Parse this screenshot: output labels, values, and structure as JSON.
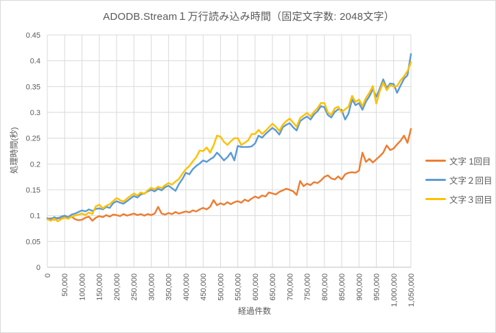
{
  "frame": {
    "background": "#FFFFFF",
    "border_color": "#D9D9D9",
    "grid_color": "#D9D9D9",
    "axis_line_color": "#BFBFBF",
    "text_color": "#595959"
  },
  "chart_data": {
    "type": "line",
    "title": "ADODB.Stream１万行読み込み時間（固定文字数: 2048文字）",
    "xlabel": "経過件数",
    "ylabel": "処理時間(秒)",
    "ylim": [
      0,
      0.45
    ],
    "y_tick_step": 0.05,
    "y_tick_labels": [
      "0",
      "0.05",
      "0.1",
      "0.15",
      "0.2",
      "0.25",
      "0.3",
      "0.35",
      "0.4",
      "0.45"
    ],
    "x_start": 0,
    "x_step": 10000,
    "x_tick_labels": [
      "0",
      "50,000",
      "100,000",
      "150,000",
      "200,000",
      "250,000",
      "300,000",
      "350,000",
      "400,000",
      "450,000",
      "500,000",
      "550,000",
      "600,000",
      "650,000",
      "700,000",
      "750,000",
      "800,000",
      "850,000",
      "900,000",
      "950,000",
      "1,000,000",
      "1,050,000"
    ],
    "grid": true,
    "legend_position": "right",
    "series": [
      {
        "name": "文字 1回目",
        "color": "#ED7D31",
        "values": [
          0.093,
          0.095,
          0.092,
          0.096,
          0.094,
          0.097,
          0.094,
          0.098,
          0.093,
          0.091,
          0.092,
          0.096,
          0.098,
          0.09,
          0.096,
          0.099,
          0.097,
          0.101,
          0.098,
          0.102,
          0.101,
          0.099,
          0.103,
          0.1,
          0.102,
          0.104,
          0.101,
          0.103,
          0.1,
          0.103,
          0.101,
          0.104,
          0.117,
          0.104,
          0.102,
          0.105,
          0.103,
          0.107,
          0.104,
          0.106,
          0.108,
          0.106,
          0.11,
          0.108,
          0.112,
          0.115,
          0.112,
          0.117,
          0.13,
          0.12,
          0.124,
          0.121,
          0.126,
          0.122,
          0.126,
          0.128,
          0.125,
          0.131,
          0.128,
          0.133,
          0.137,
          0.134,
          0.139,
          0.137,
          0.145,
          0.143,
          0.141,
          0.146,
          0.149,
          0.152,
          0.15,
          0.147,
          0.14,
          0.167,
          0.157,
          0.162,
          0.159,
          0.165,
          0.163,
          0.168,
          0.175,
          0.178,
          0.172,
          0.17,
          0.176,
          0.17,
          0.18,
          0.183,
          0.184,
          0.183,
          0.187,
          0.222,
          0.204,
          0.21,
          0.203,
          0.209,
          0.215,
          0.222,
          0.236,
          0.227,
          0.23,
          0.238,
          0.245,
          0.255,
          0.241,
          0.268
        ]
      },
      {
        "name": "文字２回目",
        "color": "#5B9BD5",
        "values": [
          0.095,
          0.093,
          0.097,
          0.094,
          0.098,
          0.1,
          0.097,
          0.102,
          0.104,
          0.107,
          0.11,
          0.108,
          0.112,
          0.109,
          0.113,
          0.114,
          0.112,
          0.117,
          0.115,
          0.124,
          0.128,
          0.125,
          0.123,
          0.128,
          0.133,
          0.138,
          0.135,
          0.141,
          0.143,
          0.147,
          0.15,
          0.147,
          0.152,
          0.149,
          0.155,
          0.158,
          0.153,
          0.148,
          0.161,
          0.171,
          0.183,
          0.18,
          0.19,
          0.196,
          0.201,
          0.207,
          0.204,
          0.209,
          0.213,
          0.222,
          0.215,
          0.207,
          0.213,
          0.222,
          0.207,
          0.235,
          0.233,
          0.233,
          0.233,
          0.234,
          0.24,
          0.255,
          0.251,
          0.258,
          0.264,
          0.27,
          0.265,
          0.257,
          0.271,
          0.276,
          0.279,
          0.271,
          0.265,
          0.283,
          0.288,
          0.292,
          0.286,
          0.296,
          0.302,
          0.312,
          0.31,
          0.295,
          0.29,
          0.301,
          0.306,
          0.305,
          0.286,
          0.298,
          0.325,
          0.314,
          0.318,
          0.305,
          0.321,
          0.331,
          0.345,
          0.33,
          0.346,
          0.364,
          0.347,
          0.356,
          0.355,
          0.338,
          0.352,
          0.365,
          0.372,
          0.413
        ]
      },
      {
        "name": "文字３回目",
        "color": "#FFC000",
        "values": [
          0.093,
          0.09,
          0.094,
          0.089,
          0.093,
          0.096,
          0.094,
          0.098,
          0.1,
          0.102,
          0.104,
          0.101,
          0.106,
          0.103,
          0.118,
          0.121,
          0.114,
          0.119,
          0.122,
          0.128,
          0.134,
          0.13,
          0.127,
          0.133,
          0.138,
          0.143,
          0.139,
          0.145,
          0.142,
          0.149,
          0.154,
          0.151,
          0.156,
          0.153,
          0.159,
          0.163,
          0.16,
          0.166,
          0.171,
          0.181,
          0.19,
          0.196,
          0.205,
          0.213,
          0.226,
          0.225,
          0.232,
          0.222,
          0.236,
          0.255,
          0.253,
          0.243,
          0.237,
          0.244,
          0.25,
          0.25,
          0.237,
          0.241,
          0.246,
          0.258,
          0.258,
          0.266,
          0.258,
          0.264,
          0.271,
          0.278,
          0.272,
          0.264,
          0.276,
          0.283,
          0.288,
          0.28,
          0.272,
          0.289,
          0.294,
          0.299,
          0.292,
          0.301,
          0.308,
          0.318,
          0.318,
          0.3,
          0.295,
          0.308,
          0.311,
          0.3,
          0.306,
          0.311,
          0.332,
          0.32,
          0.325,
          0.312,
          0.328,
          0.338,
          0.351,
          0.317,
          0.341,
          0.358,
          0.343,
          0.353,
          0.35,
          0.351,
          0.362,
          0.37,
          0.38,
          0.397
        ]
      }
    ]
  }
}
